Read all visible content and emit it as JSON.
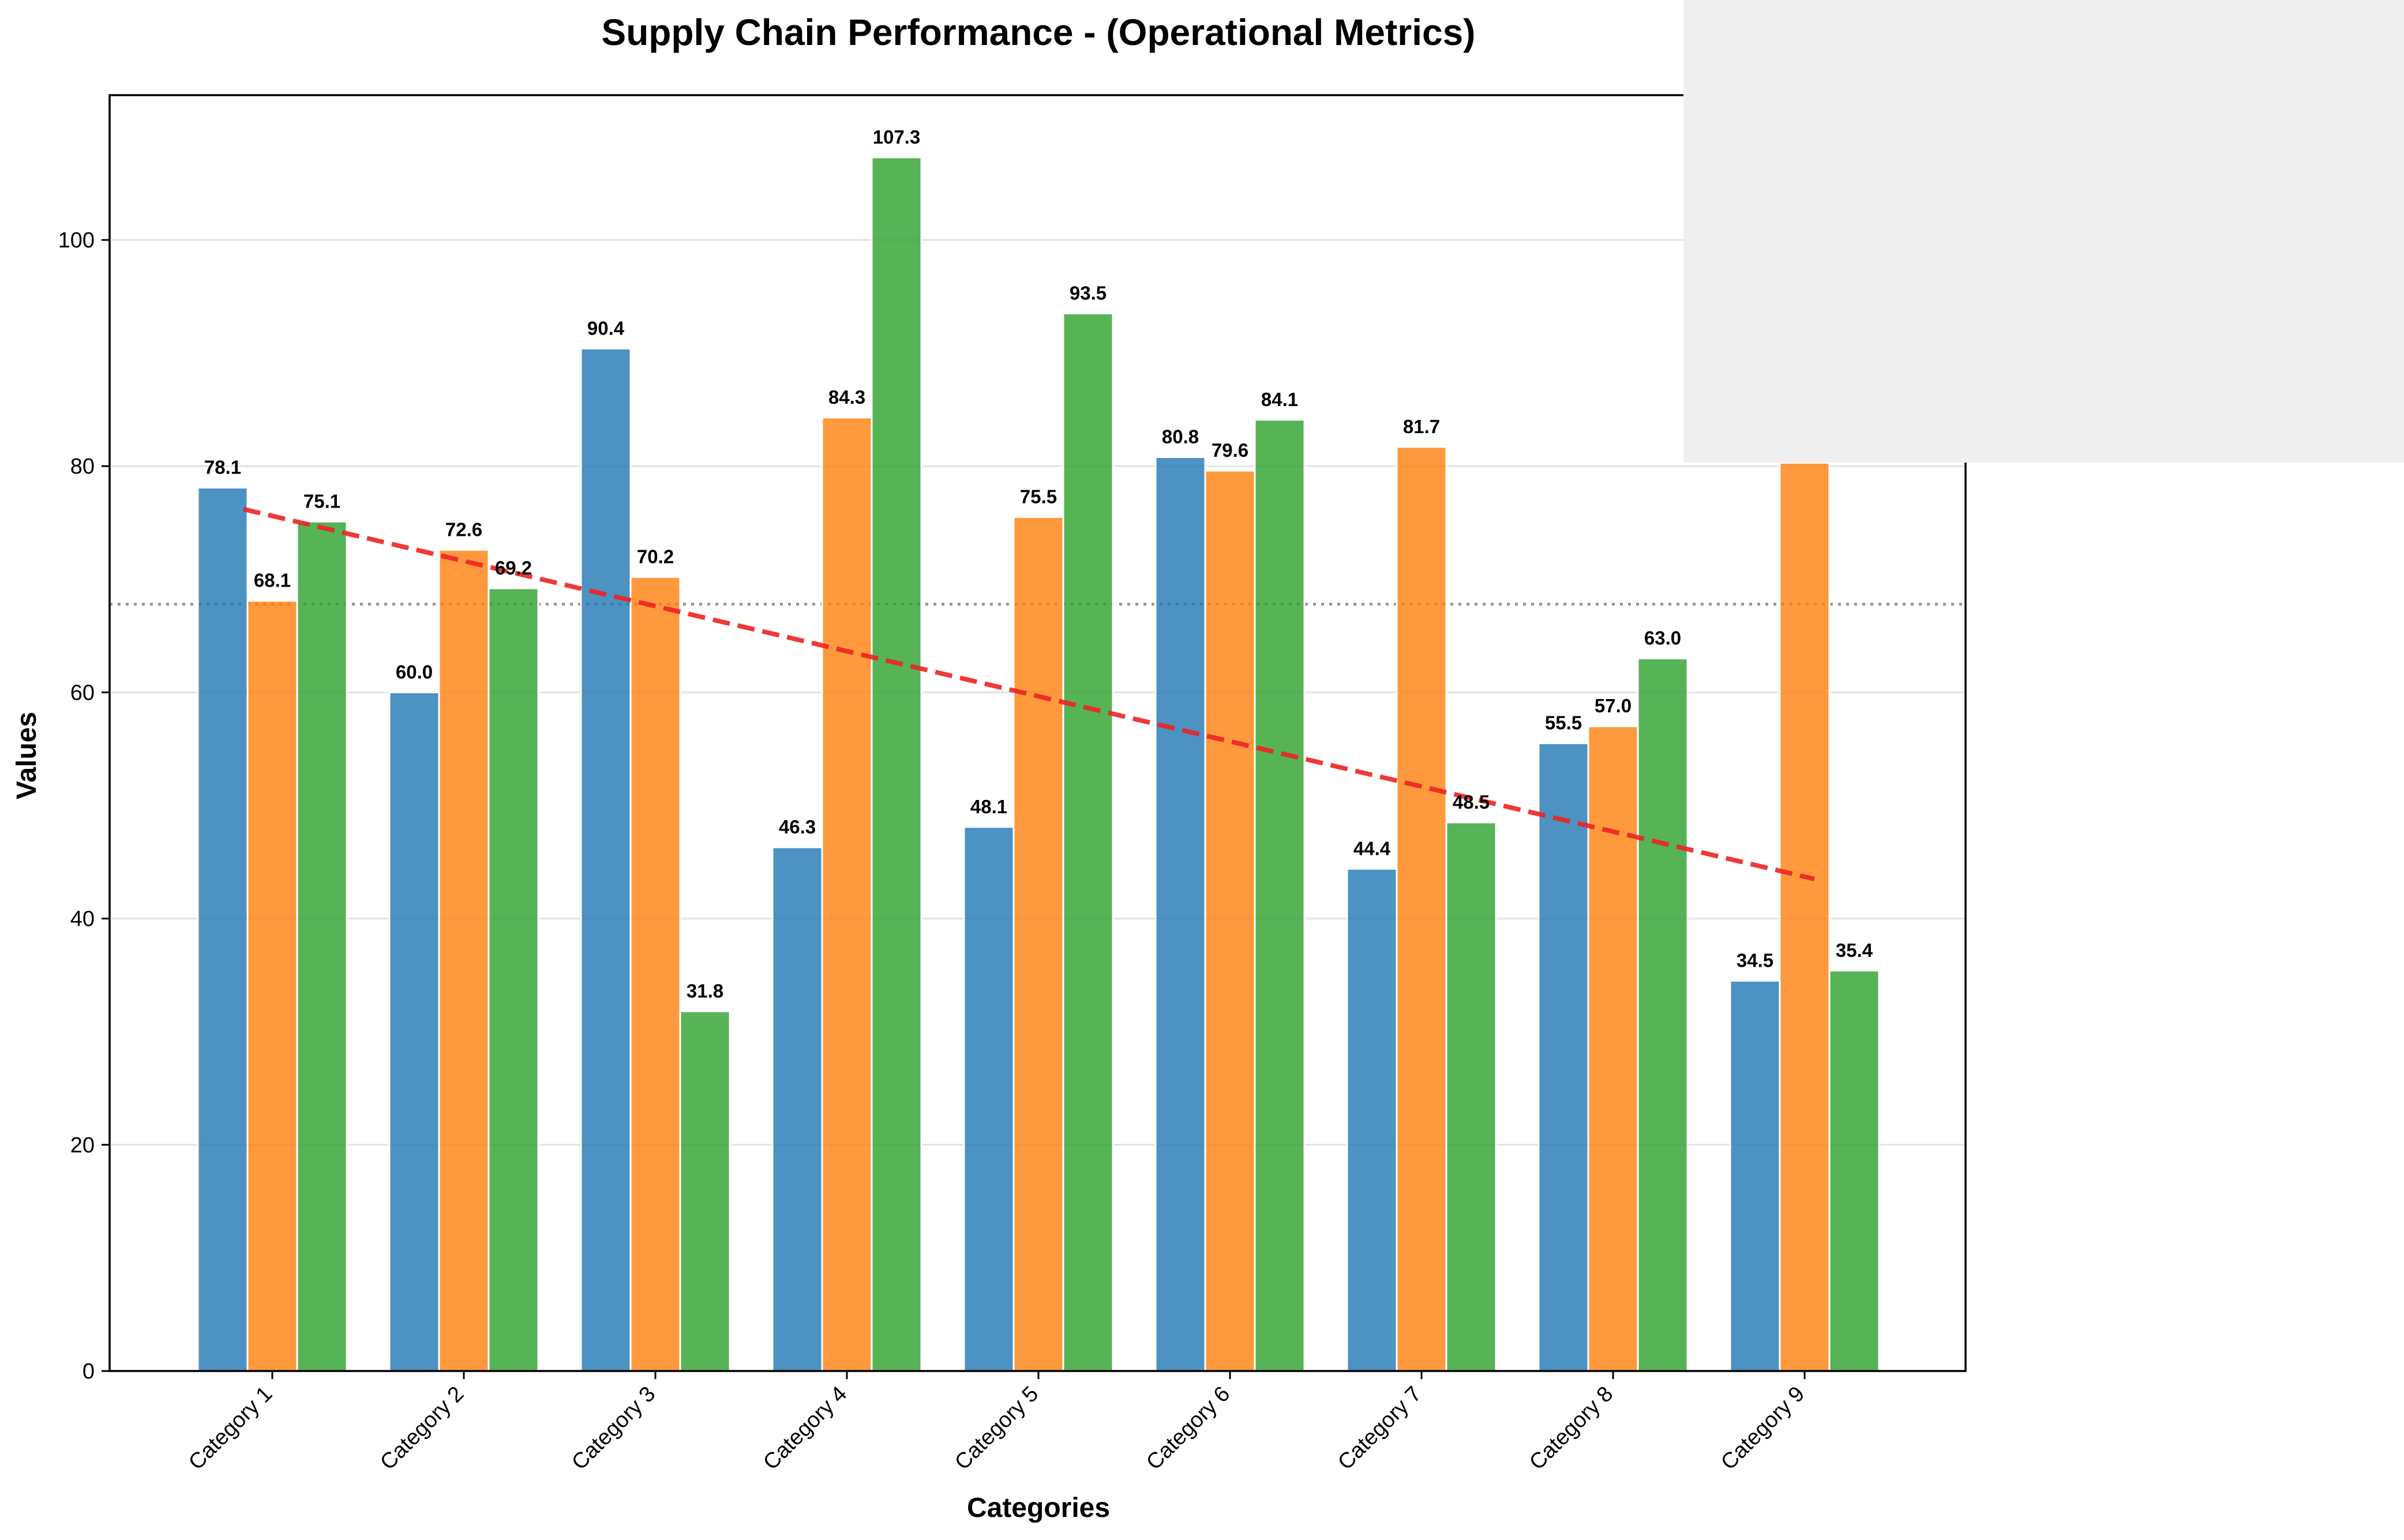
{
  "chart_data": {
    "type": "bar",
    "title": "Supply Chain Performance - (Operational Metrics)",
    "xlabel": "Categories",
    "ylabel": "Values",
    "ylim": [
      0,
      112.8
    ],
    "yticks": [
      0,
      20,
      40,
      60,
      80,
      100
    ],
    "grid": "horizontal",
    "categories": [
      "Category 1",
      "Category 2",
      "Category 3",
      "Category 4",
      "Category 5",
      "Category 6",
      "Category 7",
      "Category 8",
      "Category 9"
    ],
    "series": [
      {
        "values": [
          78.1,
          60.0,
          90.4,
          46.3,
          48.1,
          80.8,
          44.4,
          55.5,
          34.5
        ],
        "color": "#1f77b4",
        "labels": [
          "78.1",
          "60.0",
          "90.4",
          "46.3",
          "48.1",
          "80.8",
          "44.4",
          "55.5",
          "34.5"
        ]
      },
      {
        "values": [
          68.1,
          72.6,
          70.2,
          84.3,
          75.5,
          79.6,
          81.7,
          57.0,
          80.3
        ],
        "color": "#ff7f0e",
        "labels": [
          "68.1",
          "72.6",
          "70.2",
          "84.3",
          "75.5",
          "79.6",
          "81.7",
          "57.0",
          ""
        ]
      },
      {
        "values": [
          75.1,
          69.2,
          31.8,
          107.3,
          93.5,
          84.1,
          48.5,
          63.0,
          35.4
        ],
        "color": "#2ca02c",
        "labels": [
          "75.1",
          "69.2",
          "31.8",
          "107.3",
          "93.5",
          "84.1",
          "48.5",
          "63.0",
          "35.4"
        ]
      }
    ],
    "trend_line": {
      "color": "#ee2222",
      "style": "dashed",
      "start_value": 76.2,
      "end_value": 43.5
    },
    "reference_line": {
      "value": 67.8,
      "color": "#999999",
      "style": "dotted"
    }
  }
}
